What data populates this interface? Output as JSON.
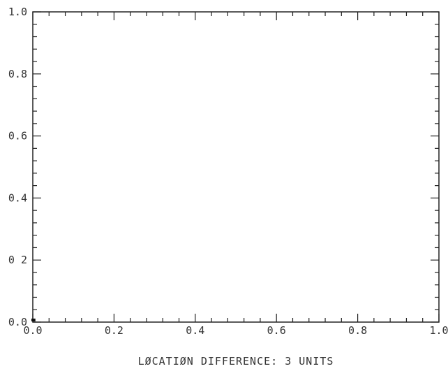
{
  "chart_data": {
    "type": "scatter",
    "title": "",
    "xlabel": "LØCATIØN DIFFERENCE: 3 UNITS",
    "ylabel": "",
    "xlim": [
      0,
      1
    ],
    "ylim": [
      0,
      1
    ],
    "x_ticks": [
      {
        "value": 0.0,
        "label": "0.0"
      },
      {
        "value": 0.2,
        "label": "0.2"
      },
      {
        "value": 0.4,
        "label": "0.4"
      },
      {
        "value": 0.6,
        "label": "0.6"
      },
      {
        "value": 0.8,
        "label": "0.8"
      },
      {
        "value": 1.0,
        "label": "1.0"
      }
    ],
    "y_ticks": [
      {
        "value": 0.0,
        "label": "0.0"
      },
      {
        "value": 0.2,
        "label": "0 2"
      },
      {
        "value": 0.4,
        "label": "0.4"
      },
      {
        "value": 0.6,
        "label": "0.6"
      },
      {
        "value": 0.8,
        "label": "0.8"
      },
      {
        "value": 1.0,
        "label": "1.0"
      }
    ],
    "grid": false,
    "series": [
      {
        "points": [
          [
            0.0,
            0.0
          ],
          [
            0.003,
            0.0
          ]
        ]
      }
    ],
    "colors": {
      "axis": "#222222",
      "marker": "#111111",
      "background": "#ffffff"
    }
  }
}
